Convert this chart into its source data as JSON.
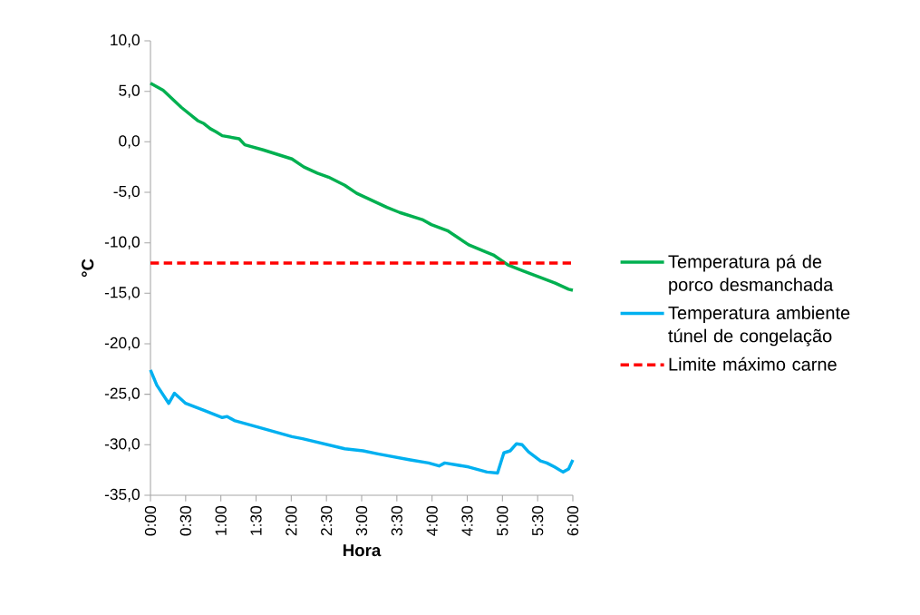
{
  "chart_data": {
    "type": "line",
    "xlabel": "Hora",
    "ylabel": "°C",
    "xlim": [
      0,
      6
    ],
    "ylim": [
      -35,
      10
    ],
    "xticks": [
      {
        "value": 0,
        "label": "0:00"
      },
      {
        "value": 0.5,
        "label": "0:30"
      },
      {
        "value": 1,
        "label": "1:00"
      },
      {
        "value": 1.5,
        "label": "1:30"
      },
      {
        "value": 2,
        "label": "2:00"
      },
      {
        "value": 2.5,
        "label": "2:30"
      },
      {
        "value": 3,
        "label": "3:00"
      },
      {
        "value": 3.5,
        "label": "3:30"
      },
      {
        "value": 4,
        "label": "4:00"
      },
      {
        "value": 4.5,
        "label": "4:30"
      },
      {
        "value": 5,
        "label": "5:00"
      },
      {
        "value": 5.5,
        "label": "5:30"
      },
      {
        "value": 6,
        "label": "6:00"
      }
    ],
    "yticks": [
      {
        "value": -35,
        "label": "-35,0"
      },
      {
        "value": -30,
        "label": "-30,0"
      },
      {
        "value": -25,
        "label": "-25,0"
      },
      {
        "value": -20,
        "label": "-20,0"
      },
      {
        "value": -15,
        "label": "-15,0"
      },
      {
        "value": -10,
        "label": "-10,0"
      },
      {
        "value": -5,
        "label": "-5,0"
      },
      {
        "value": 0,
        "label": "0,0"
      },
      {
        "value": 5,
        "label": "5,0"
      },
      {
        "value": 10,
        "label": "10,0"
      }
    ],
    "legend": "right",
    "series": [
      {
        "name": "Temperatura pá de porco desmanchada",
        "color": "#00b050",
        "line_style": "solid",
        "x": [
          0,
          0.18,
          0.44,
          0.67,
          0.76,
          0.85,
          0.93,
          1.02,
          1.26,
          1.34,
          1.6,
          2.01,
          2.18,
          2.37,
          2.53,
          2.76,
          2.93,
          3.36,
          3.54,
          3.86,
          3.99,
          4.22,
          4.52,
          4.76,
          4.87,
          5.08,
          5.3,
          5.53,
          5.75,
          5.94,
          6.0
        ],
        "values": [
          5.8,
          5.1,
          3.4,
          2.1,
          1.8,
          1.3,
          1.0,
          0.6,
          0.3,
          -0.3,
          -0.8,
          -1.7,
          -2.5,
          -3.1,
          -3.5,
          -4.3,
          -5.1,
          -6.5,
          -7.0,
          -7.7,
          -8.2,
          -8.8,
          -10.2,
          -10.9,
          -11.2,
          -12.2,
          -12.8,
          -13.4,
          -14.0,
          -14.6,
          -14.7
        ]
      },
      {
        "name": "Temperatura ambiente túnel de congelação",
        "color": "#00b0f0",
        "line_style": "solid",
        "x": [
          0,
          0.09,
          0.26,
          0.34,
          0.5,
          0.76,
          1.02,
          1.09,
          1.19,
          1.55,
          2.01,
          2.16,
          2.76,
          3.02,
          3.23,
          3.69,
          3.95,
          4.1,
          4.18,
          4.52,
          4.78,
          4.93,
          5.02,
          5.11,
          5.2,
          5.28,
          5.37,
          5.54,
          5.63,
          5.74,
          5.86,
          5.94,
          6.0
        ],
        "values": [
          -22.6,
          -24.1,
          -25.9,
          -24.9,
          -25.9,
          -26.6,
          -27.3,
          -27.2,
          -27.6,
          -28.3,
          -29.2,
          -29.4,
          -30.4,
          -30.6,
          -30.9,
          -31.5,
          -31.8,
          -32.1,
          -31.8,
          -32.2,
          -32.7,
          -32.8,
          -30.8,
          -30.6,
          -29.9,
          -30.0,
          -30.7,
          -31.6,
          -31.8,
          -32.2,
          -32.7,
          -32.4,
          -31.5
        ]
      },
      {
        "name": "Limite máximo carne",
        "color": "#ff0000",
        "line_style": "dashed",
        "x": [
          0,
          6
        ],
        "values": [
          -12,
          -12
        ]
      }
    ]
  }
}
